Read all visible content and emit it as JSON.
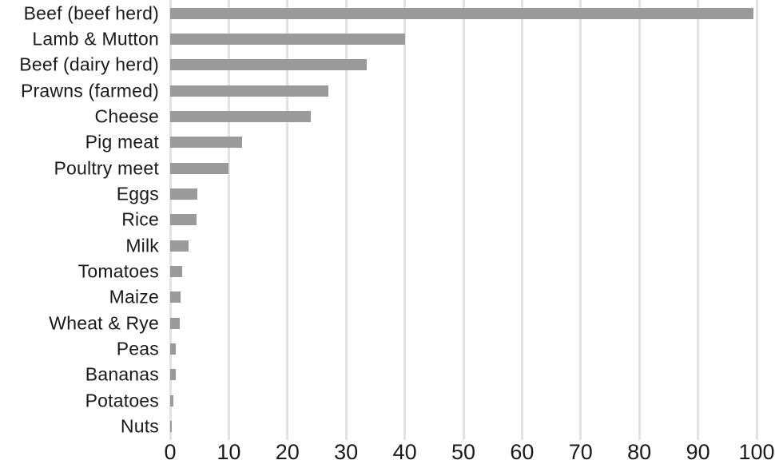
{
  "chart_data": {
    "type": "bar",
    "orientation": "horizontal",
    "title": "",
    "xlabel": "",
    "ylabel": "",
    "categories": [
      "Beef (beef herd)",
      "Lamb & Mutton",
      "Beef (dairy herd)",
      "Prawns (farmed)",
      "Cheese",
      "Pig meat",
      "Poultry meet",
      "Eggs",
      "Rice",
      "Milk",
      "Tomatoes",
      "Maize",
      "Wheat & Rye",
      "Peas",
      "Bananas",
      "Potatoes",
      "Nuts"
    ],
    "values": [
      99.5,
      40,
      33.5,
      27,
      24,
      12.3,
      9.9,
      4.7,
      4.5,
      3.2,
      2.1,
      1.8,
      1.6,
      1.0,
      0.9,
      0.5,
      0.3
    ],
    "xlim": [
      0,
      100
    ],
    "xticks": [
      0,
      10,
      20,
      30,
      40,
      50,
      60,
      70,
      80,
      90,
      100
    ],
    "grid": "vertical-only",
    "legend": "none",
    "colors": {
      "bar": "#9a9a9a",
      "gridline": "#e2e2e2",
      "text": "#1a1a1a",
      "background": "#ffffff"
    }
  }
}
